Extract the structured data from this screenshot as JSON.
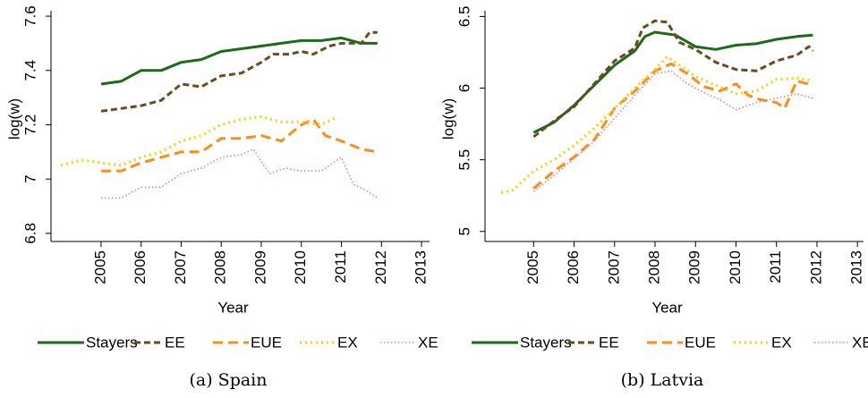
{
  "chart_data": [
    {
      "type": "line",
      "caption": "(a) Spain",
      "xlabel": "Year",
      "ylabel": "log(w)",
      "xlim": [
        2003.75,
        2013.2
      ],
      "ylim": [
        6.77,
        7.62
      ],
      "xticks": [
        2005,
        2006,
        2007,
        2008,
        2009,
        2010,
        2011,
        2012,
        2013
      ],
      "yticks": [
        6.8,
        7,
        7.2,
        7.4,
        7.6
      ],
      "series": [
        {
          "name": "Stayers",
          "color": "#1a6b1a",
          "x": [
            2005,
            2005.5,
            2006,
            2006.5,
            2007,
            2007.5,
            2008,
            2008.5,
            2009,
            2009.5,
            2010,
            2010.5,
            2011,
            2011.5,
            2011.9
          ],
          "values": [
            7.35,
            7.36,
            7.4,
            7.4,
            7.43,
            7.44,
            7.47,
            7.48,
            7.49,
            7.5,
            7.51,
            7.51,
            7.52,
            7.5,
            7.5
          ]
        },
        {
          "name": "EE",
          "color": "#6b4a1c",
          "x": [
            2005,
            2005.5,
            2006,
            2006.5,
            2007,
            2007.5,
            2008,
            2008.5,
            2009,
            2009.3,
            2009.7,
            2010,
            2010.3,
            2010.7,
            2011,
            2011.5,
            2011.7,
            2011.9
          ],
          "values": [
            7.25,
            7.26,
            7.27,
            7.29,
            7.35,
            7.34,
            7.38,
            7.39,
            7.43,
            7.46,
            7.46,
            7.47,
            7.46,
            7.49,
            7.5,
            7.5,
            7.54,
            7.54
          ]
        },
        {
          "name": "EUE",
          "color": "#ff8c1a",
          "x": [
            2005,
            2005.5,
            2006,
            2006.5,
            2007,
            2007.5,
            2008,
            2008.5,
            2009,
            2009.5,
            2010,
            2010.3,
            2010.6,
            2011,
            2011.5,
            2011.9
          ],
          "values": [
            7.03,
            7.03,
            7.06,
            7.08,
            7.1,
            7.1,
            7.15,
            7.15,
            7.16,
            7.14,
            7.2,
            7.22,
            7.16,
            7.14,
            7.11,
            7.1
          ]
        },
        {
          "name": "EX",
          "color": "#f2d21a",
          "x": [
            2004,
            2004.5,
            2005,
            2005.5,
            2006,
            2006.5,
            2007,
            2007.5,
            2008,
            2008.5,
            2009,
            2009.5,
            2010,
            2010.5,
            2010.9
          ],
          "values": [
            7.05,
            7.07,
            7.06,
            7.05,
            7.08,
            7.1,
            7.14,
            7.16,
            7.2,
            7.22,
            7.23,
            7.21,
            7.21,
            7.2,
            7.23
          ]
        },
        {
          "name": "XE",
          "color": "#f08080",
          "x": [
            2005,
            2005.5,
            2006,
            2006.5,
            2007,
            2007.5,
            2008,
            2008.5,
            2008.8,
            2009.2,
            2009.6,
            2010,
            2010.5,
            2011,
            2011.3,
            2011.6,
            2011.9
          ],
          "values": [
            6.93,
            6.93,
            6.97,
            6.97,
            7.02,
            7.04,
            7.08,
            7.09,
            7.11,
            7.02,
            7.04,
            7.03,
            7.03,
            7.08,
            6.98,
            6.96,
            6.93
          ]
        }
      ]
    },
    {
      "type": "line",
      "caption": "(b) Latvia",
      "xlabel": "Year",
      "ylabel": "log(w)",
      "xlim": [
        2003.8,
        2013.15
      ],
      "ylim": [
        4.93,
        6.54
      ],
      "xticks": [
        2005,
        2006,
        2007,
        2008,
        2009,
        2010,
        2011,
        2012,
        2013
      ],
      "yticks": [
        5,
        5.5,
        6,
        6.5
      ],
      "series": [
        {
          "name": "Stayers",
          "color": "#1a6b1a",
          "x": [
            2005,
            2005.5,
            2006,
            2006.5,
            2007,
            2007.5,
            2007.75,
            2008,
            2008.5,
            2009,
            2009.5,
            2010,
            2010.5,
            2011,
            2011.5,
            2011.9
          ],
          "values": [
            5.69,
            5.76,
            5.88,
            6.02,
            6.16,
            6.26,
            6.36,
            6.39,
            6.37,
            6.29,
            6.27,
            6.3,
            6.31,
            6.34,
            6.36,
            6.37
          ]
        },
        {
          "name": "EE",
          "color": "#6b4a1c",
          "x": [
            2005,
            2005.5,
            2006,
            2006.5,
            2007,
            2007.5,
            2007.7,
            2008,
            2008.3,
            2008.6,
            2009,
            2009.5,
            2010,
            2010.5,
            2011,
            2011.5,
            2011.8,
            2011.9
          ],
          "values": [
            5.66,
            5.77,
            5.87,
            6.03,
            6.19,
            6.28,
            6.42,
            6.47,
            6.46,
            6.32,
            6.27,
            6.18,
            6.13,
            6.12,
            6.19,
            6.23,
            6.29,
            6.26
          ]
        },
        {
          "name": "EUE",
          "color": "#ff8c1a",
          "x": [
            2005,
            2005.5,
            2006,
            2006.5,
            2007,
            2007.5,
            2008,
            2008.4,
            2008.8,
            2009.2,
            2009.6,
            2010,
            2010.3,
            2010.6,
            2011,
            2011.2,
            2011.5,
            2011.9
          ],
          "values": [
            5.3,
            5.42,
            5.52,
            5.64,
            5.86,
            5.98,
            6.12,
            6.17,
            6.1,
            6.01,
            5.98,
            6.03,
            5.95,
            5.92,
            5.9,
            5.86,
            6.05,
            6.02
          ]
        },
        {
          "name": "EX",
          "color": "#f2d21a",
          "x": [
            2004.2,
            2004.5,
            2005,
            2005.5,
            2006,
            2006.5,
            2007,
            2007.5,
            2008,
            2008.3,
            2008.6,
            2009,
            2009.5,
            2010,
            2010.5,
            2011,
            2011.5,
            2011.9
          ],
          "values": [
            5.27,
            5.29,
            5.42,
            5.5,
            5.6,
            5.72,
            5.86,
            6,
            6.13,
            6.22,
            6.16,
            6.08,
            6.02,
            5.96,
            5.98,
            6.06,
            6.07,
            6.05
          ]
        },
        {
          "name": "XE",
          "color": "#f08080",
          "x": [
            2005,
            2005.5,
            2006,
            2006.5,
            2007,
            2007.5,
            2008,
            2008.4,
            2008.8,
            2009.2,
            2009.6,
            2010,
            2010.5,
            2011,
            2011.5,
            2011.9
          ],
          "values": [
            5.28,
            5.39,
            5.51,
            5.63,
            5.79,
            5.95,
            6.1,
            6.12,
            6.03,
            5.97,
            5.92,
            5.85,
            5.9,
            5.93,
            5.96,
            5.93
          ]
        }
      ]
    }
  ]
}
